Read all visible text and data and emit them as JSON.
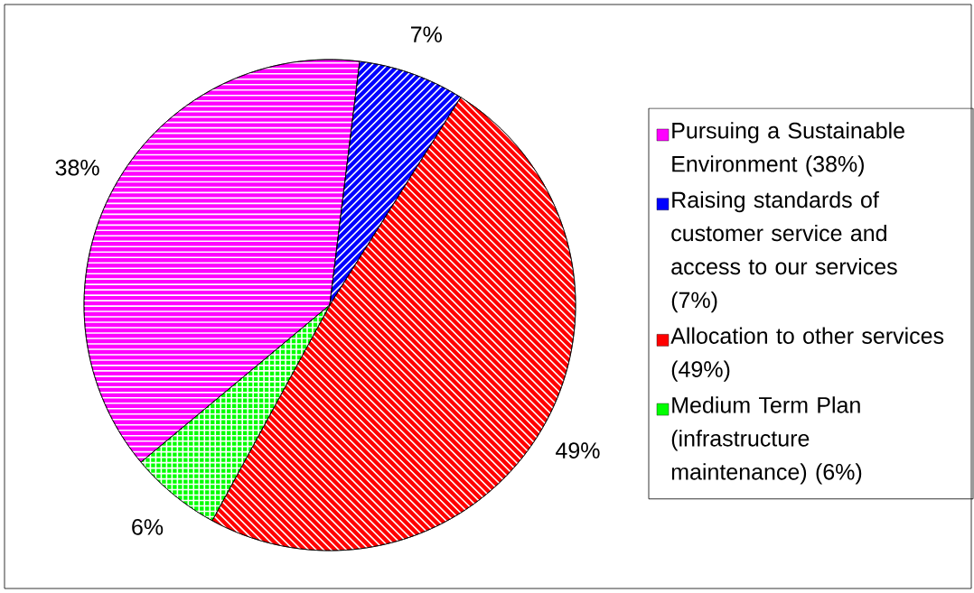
{
  "chart_data": {
    "type": "pie",
    "categories": [
      "Pursuing a Sustainable Environment (38%)",
      "Raising standards of customer service and access to our services (7%)",
      "Allocation to other services (49%)",
      "Medium Term Plan (infrastructure maintenance) (6%)"
    ],
    "values": [
      38,
      7,
      49,
      6
    ],
    "colors": [
      "#ff00ff",
      "#0000ff",
      "#ff0000",
      "#00ff00"
    ],
    "value_labels": [
      "38%",
      "7%",
      "49%",
      "6%"
    ],
    "legend": "right"
  }
}
